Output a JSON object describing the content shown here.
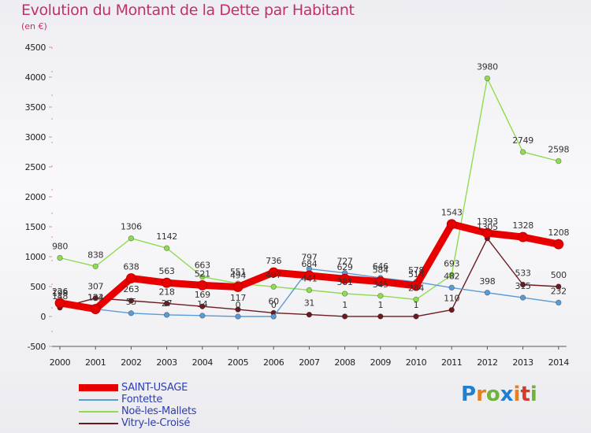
{
  "title": "Evolution du Montant de la Dette par Habitant",
  "subtitle": "(en €)",
  "brand": "Proxiti",
  "chart_data": {
    "type": "line",
    "x": [
      2000,
      2001,
      2002,
      2003,
      2004,
      2005,
      2006,
      2007,
      2008,
      2009,
      2010,
      2011,
      2012,
      2013,
      2014
    ],
    "ylim": [
      -500,
      4500
    ],
    "yticks": [
      -500,
      0,
      500,
      1000,
      1500,
      2000,
      2500,
      3000,
      3500,
      4000,
      4500
    ],
    "grid": false,
    "legend_position": "bottom-left",
    "series": [
      {
        "name": "SAINT-USAGE",
        "color": "#e80000",
        "emphasis": true,
        "values": [
          226,
          124,
          638,
          563,
          521,
          494,
          736,
          684,
          629,
          584,
          514,
          1543,
          1393,
          1328,
          1208
        ]
      },
      {
        "name": "Fontette",
        "color": "#5b9bd5",
        "values": [
          198,
          123,
          55,
          27,
          14,
          0,
          0,
          797,
          727,
          646,
          578,
          482,
          398,
          315,
          232
        ]
      },
      {
        "name": "Noë-les-Mallets",
        "color": "#8fdc4f",
        "values": [
          980,
          838,
          1306,
          1142,
          663,
          551,
          497,
          441,
          381,
          345,
          284,
          693,
          3980,
          2749,
          2598
        ]
      },
      {
        "name": "Vitry-le-Croisé",
        "color": "#6b1a20",
        "values": [
          148,
          307,
          263,
          218,
          169,
          117,
          60,
          31,
          1,
          1,
          1,
          110,
          1305,
          533,
          500
        ]
      }
    ]
  }
}
